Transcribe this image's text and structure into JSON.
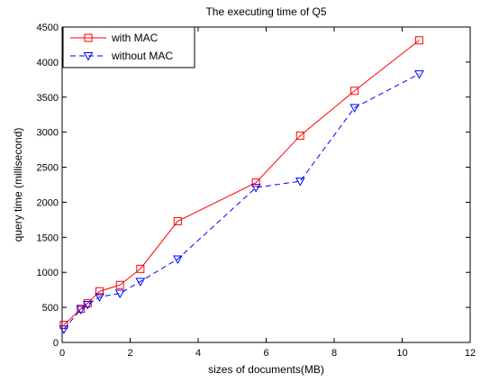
{
  "chart_data": {
    "type": "line",
    "title": "The executing time of Q5",
    "xlabel": "sizes of documents(MB)",
    "ylabel": "query time (millisecond)",
    "xlim": [
      0,
      12
    ],
    "ylim": [
      0,
      4500
    ],
    "xticks": [
      0,
      2,
      4,
      6,
      8,
      10,
      12
    ],
    "yticks": [
      0,
      500,
      1000,
      1500,
      2000,
      2500,
      3000,
      3500,
      4000,
      4500
    ],
    "grid": false,
    "legend_position": "top-left",
    "series": [
      {
        "name": "with MAC",
        "color": "#ff0000",
        "line_style": "solid",
        "marker": "square",
        "x": [
          0.05,
          0.55,
          0.75,
          1.1,
          1.7,
          2.3,
          3.4,
          5.7,
          7.0,
          8.6,
          10.5
        ],
        "y": [
          250,
          480,
          560,
          730,
          820,
          1050,
          1730,
          2280,
          2950,
          3590,
          4310
        ]
      },
      {
        "name": "without MAC",
        "color": "#0000ff",
        "line_style": "dashed",
        "marker": "triangle-down",
        "x": [
          0.05,
          0.55,
          0.75,
          1.1,
          1.7,
          2.3,
          3.4,
          5.7,
          7.0,
          8.6,
          10.5
        ],
        "y": [
          190,
          470,
          540,
          650,
          700,
          870,
          1190,
          2210,
          2300,
          3350,
          3830
        ]
      }
    ]
  }
}
